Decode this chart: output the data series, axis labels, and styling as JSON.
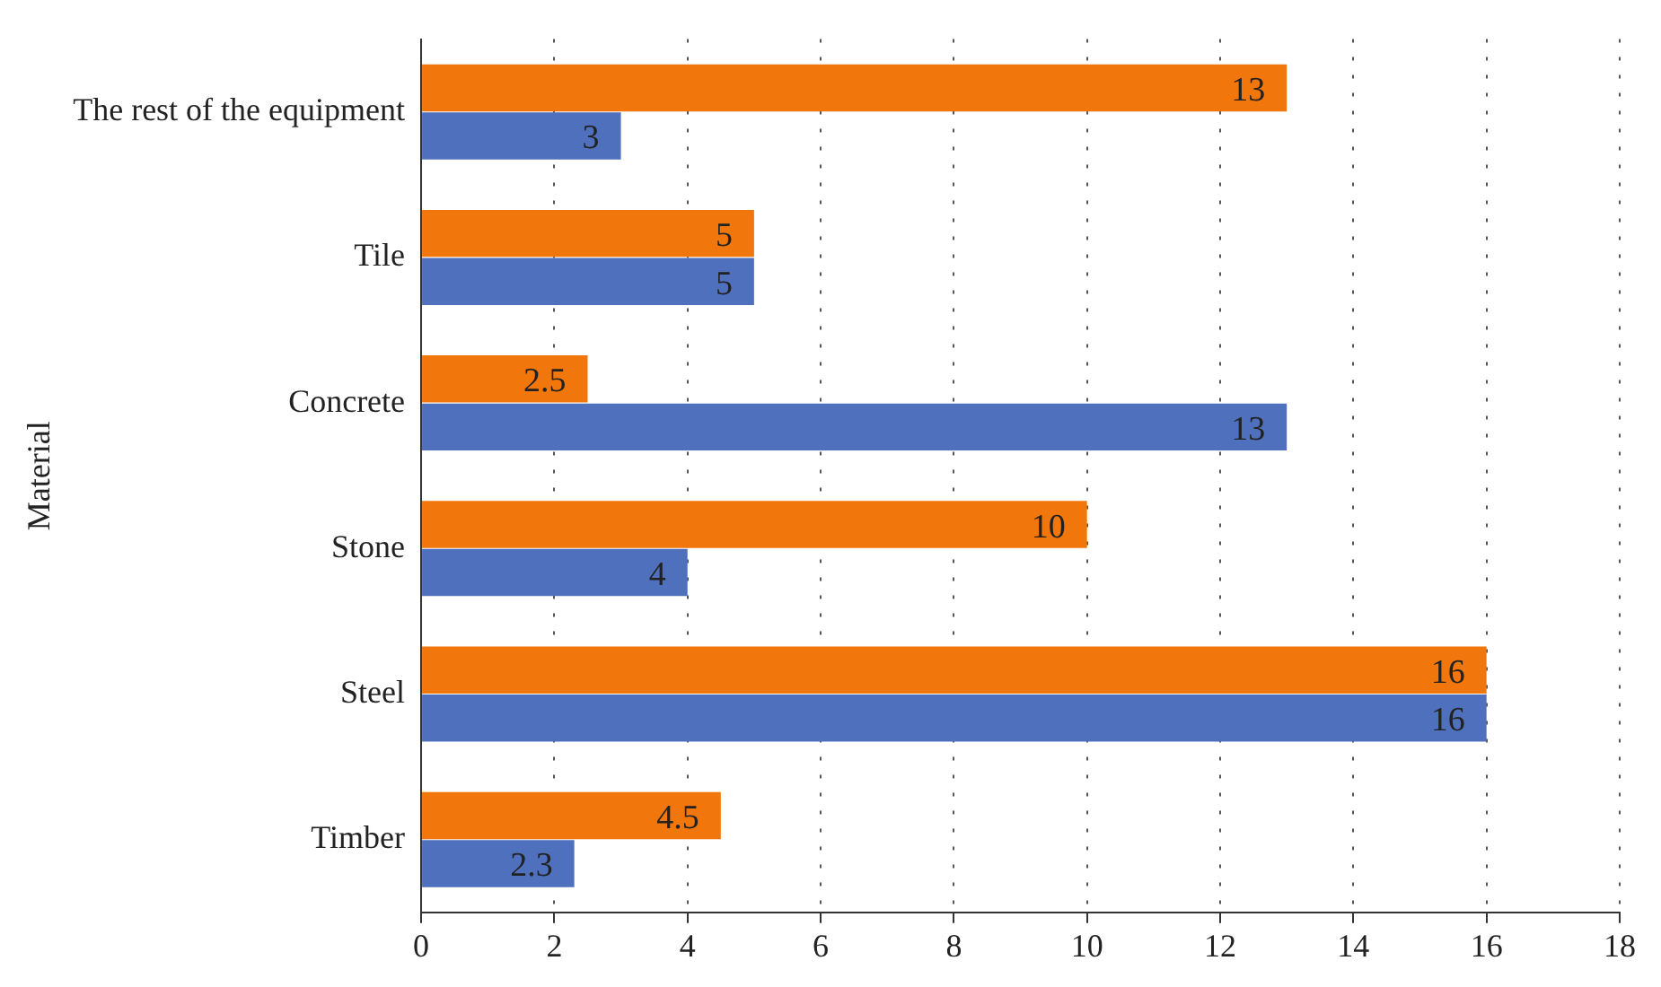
{
  "chart_data": {
    "type": "bar",
    "orientation": "horizontal",
    "ylabel": "Material",
    "categories": [
      "The rest of the equipment",
      "Tile",
      "Concrete",
      "Stone",
      "Steel",
      "Timber"
    ],
    "series": [
      {
        "color": "#f1760b",
        "values": [
          13,
          5,
          2.5,
          10,
          16,
          4.5
        ]
      },
      {
        "color": "#4f71bd",
        "values": [
          3,
          5,
          13,
          4,
          16,
          2.3
        ]
      }
    ],
    "xlim": [
      0,
      18
    ],
    "xticks": [
      0,
      2,
      4,
      6,
      8,
      10,
      12,
      14,
      16,
      18
    ],
    "grid": "x",
    "data_labels": true,
    "legend": false
  }
}
